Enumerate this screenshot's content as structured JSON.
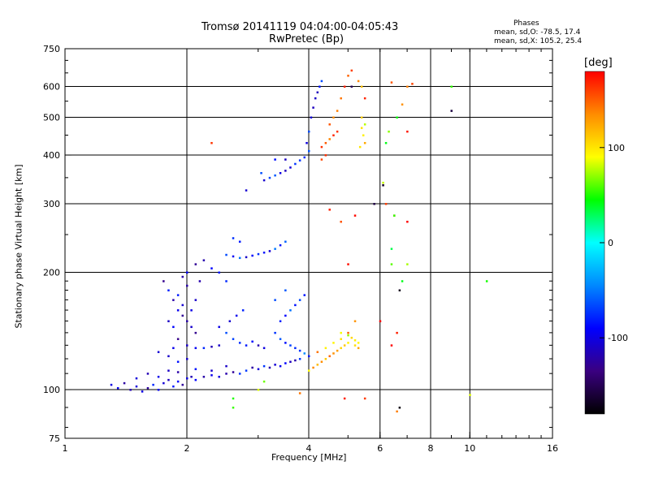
{
  "header": {
    "title_line1": "Tromsø 20141119 04:04:00-04:05:43",
    "title_line2": "RwPretec (Bp)"
  },
  "stats": {
    "heading": "Phases",
    "line_o": "mean, sd,O: -78.5, 17.4",
    "line_x": "mean, sd,X: 105.2, 25.4"
  },
  "chart_data": {
    "type": "scatter",
    "xlabel": "Frequency [MHz]",
    "ylabel": "Stationary phase Virtual Height [km]",
    "x_scale": "log",
    "y_scale": "log",
    "xlim": [
      1,
      16
    ],
    "ylim": [
      75,
      750
    ],
    "x_ticks": [
      {
        "value": 1,
        "label": "1"
      },
      {
        "value": 2,
        "label": "2"
      },
      {
        "value": 4,
        "label": "4"
      },
      {
        "value": 6,
        "label": "6"
      },
      {
        "value": 8,
        "label": "8"
      },
      {
        "value": 10,
        "label": "10"
      },
      {
        "value": 16,
        "label": "16"
      }
    ],
    "y_ticks": [
      {
        "value": 75,
        "label": "75"
      },
      {
        "value": 100,
        "label": "100"
      },
      {
        "value": 200,
        "label": "200"
      },
      {
        "value": 300,
        "label": "300"
      },
      {
        "value": 400,
        "label": "400"
      },
      {
        "value": 500,
        "label": "500"
      },
      {
        "value": 600,
        "label": "600"
      },
      {
        "value": 750,
        "label": "750"
      }
    ],
    "grid_x": [
      2,
      4,
      6,
      8,
      10
    ],
    "grid_y": [
      100,
      200,
      300,
      400,
      500,
      600
    ],
    "colorbar": {
      "label": "[deg]",
      "range": [
        -180,
        180
      ],
      "ticks": [
        {
          "value": 100,
          "label": "100"
        },
        {
          "value": 0,
          "label": "0"
        },
        {
          "value": -100,
          "label": "-100"
        }
      ],
      "stops": [
        "#ff0000",
        "#ff8c00",
        "#ffff00",
        "#00ff00",
        "#00ffff",
        "#0088ff",
        "#0000ff",
        "#3a0080",
        "#000000"
      ]
    },
    "series_description_note": "",
    "clusters": [
      {
        "name": "",
        "points": [
          [
            1.3,
            103
          ],
          [
            1.35,
            101
          ],
          [
            1.4,
            104
          ],
          [
            1.45,
            100
          ],
          [
            1.5,
            102
          ],
          [
            1.55,
            99
          ],
          [
            1.6,
            101
          ],
          [
            1.65,
            103
          ],
          [
            1.7,
            100
          ],
          [
            1.75,
            104
          ],
          [
            1.8,
            106
          ],
          [
            1.85,
            102
          ],
          [
            1.9,
            105
          ],
          [
            1.95,
            103
          ],
          [
            2.0,
            107
          ],
          [
            2.05,
            108
          ],
          [
            2.1,
            106
          ],
          [
            2.2,
            108
          ],
          [
            2.3,
            109
          ],
          [
            2.4,
            108
          ],
          [
            2.5,
            110
          ],
          [
            2.6,
            111
          ],
          [
            2.7,
            110
          ],
          [
            2.8,
            112
          ],
          [
            2.9,
            114
          ],
          [
            3.0,
            113
          ],
          [
            3.1,
            115
          ],
          [
            3.2,
            114
          ],
          [
            3.3,
            116
          ],
          [
            3.4,
            115
          ],
          [
            3.5,
            117
          ],
          [
            3.6,
            118
          ],
          [
            3.7,
            119
          ],
          [
            3.8,
            120
          ],
          [
            1.5,
            107
          ],
          [
            1.6,
            110
          ],
          [
            1.7,
            108
          ],
          [
            1.8,
            112
          ],
          [
            1.9,
            111
          ],
          [
            2.1,
            113
          ],
          [
            2.3,
            112
          ],
          [
            2.5,
            115
          ]
        ],
        "phase": -100
      },
      {
        "name": "",
        "points": [
          [
            1.75,
            190
          ],
          [
            1.8,
            180
          ],
          [
            1.85,
            170
          ],
          [
            1.9,
            175
          ],
          [
            1.95,
            165
          ],
          [
            2.0,
            185
          ],
          [
            2.05,
            160
          ],
          [
            1.8,
            150
          ],
          [
            1.85,
            145
          ],
          [
            1.9,
            160
          ],
          [
            1.95,
            155
          ],
          [
            2.0,
            150
          ],
          [
            2.05,
            145
          ],
          [
            2.1,
            140
          ],
          [
            1.9,
            135
          ],
          [
            2.0,
            130
          ],
          [
            2.1,
            128
          ],
          [
            1.85,
            128
          ],
          [
            2.2,
            128
          ],
          [
            2.3,
            129
          ],
          [
            2.4,
            130
          ],
          [
            1.7,
            125
          ],
          [
            1.8,
            122
          ],
          [
            1.9,
            118
          ],
          [
            2.0,
            120
          ],
          [
            2.1,
            170
          ],
          [
            2.15,
            190
          ],
          [
            1.95,
            195
          ],
          [
            2.0,
            200
          ],
          [
            2.1,
            210
          ],
          [
            2.2,
            215
          ],
          [
            2.3,
            205
          ],
          [
            2.4,
            200
          ],
          [
            2.5,
            190
          ]
        ],
        "phase": -105
      },
      {
        "name": "",
        "points": [
          [
            2.5,
            140
          ],
          [
            2.6,
            135
          ],
          [
            2.7,
            132
          ],
          [
            2.8,
            130
          ],
          [
            2.9,
            133
          ],
          [
            3.0,
            130
          ],
          [
            3.1,
            128
          ],
          [
            2.4,
            145
          ],
          [
            2.55,
            150
          ],
          [
            2.65,
            155
          ],
          [
            2.75,
            160
          ]
        ],
        "phase": -90
      },
      {
        "name": "",
        "points": [
          [
            2.5,
            222
          ],
          [
            2.6,
            220
          ],
          [
            2.7,
            218
          ],
          [
            2.8,
            219
          ],
          [
            2.9,
            221
          ],
          [
            3.0,
            223
          ],
          [
            3.1,
            225
          ],
          [
            3.2,
            227
          ],
          [
            3.3,
            230
          ],
          [
            3.4,
            235
          ],
          [
            3.5,
            240
          ],
          [
            2.6,
            245
          ],
          [
            2.7,
            240
          ]
        ],
        "phase": -80
      },
      {
        "name": "",
        "points": [
          [
            3.1,
            345
          ],
          [
            3.2,
            350
          ],
          [
            3.3,
            355
          ],
          [
            3.4,
            360
          ],
          [
            3.5,
            365
          ],
          [
            3.6,
            372
          ],
          [
            3.7,
            380
          ],
          [
            3.8,
            388
          ],
          [
            3.9,
            395
          ],
          [
            4.0,
            410
          ],
          [
            3.95,
            430
          ],
          [
            4.0,
            460
          ],
          [
            4.05,
            500
          ],
          [
            4.1,
            530
          ],
          [
            4.15,
            560
          ],
          [
            4.2,
            580
          ],
          [
            4.25,
            600
          ],
          [
            4.3,
            620
          ],
          [
            3.05,
            360
          ],
          [
            2.8,
            325
          ],
          [
            3.3,
            390
          ],
          [
            3.5,
            390
          ]
        ],
        "phase": -85
      },
      {
        "name": "",
        "points": [
          [
            3.3,
            140
          ],
          [
            3.4,
            135
          ],
          [
            3.5,
            132
          ],
          [
            3.6,
            130
          ],
          [
            3.7,
            128
          ],
          [
            3.8,
            126
          ],
          [
            3.9,
            124
          ],
          [
            4.0,
            122
          ],
          [
            3.4,
            150
          ],
          [
            3.5,
            155
          ],
          [
            3.6,
            160
          ],
          [
            3.7,
            165
          ],
          [
            3.8,
            170
          ],
          [
            3.9,
            175
          ],
          [
            3.5,
            180
          ],
          [
            3.3,
            170
          ]
        ],
        "phase": -60
      },
      {
        "name": "",
        "points": [
          [
            4.0,
            112
          ],
          [
            4.1,
            114
          ],
          [
            4.2,
            116
          ],
          [
            4.3,
            118
          ],
          [
            4.4,
            120
          ],
          [
            4.5,
            122
          ],
          [
            4.6,
            124
          ],
          [
            4.7,
            126
          ],
          [
            4.8,
            128
          ],
          [
            4.9,
            130
          ],
          [
            5.0,
            132
          ],
          [
            4.2,
            125
          ],
          [
            4.4,
            128
          ],
          [
            4.6,
            132
          ],
          [
            4.8,
            135
          ]
        ],
        "phase": 120
      },
      {
        "name": "",
        "points": [
          [
            4.8,
            140
          ],
          [
            5.0,
            138
          ],
          [
            5.1,
            136
          ],
          [
            5.2,
            134
          ],
          [
            5.3,
            132
          ],
          [
            5.2,
            130
          ],
          [
            5.3,
            128
          ],
          [
            5.4,
            470
          ],
          [
            5.45,
            450
          ],
          [
            5.5,
            480
          ],
          [
            5.5,
            430
          ],
          [
            5.4,
            500
          ],
          [
            5.35,
            420
          ]
        ],
        "phase": 100
      },
      {
        "name": "",
        "points": [
          [
            4.3,
            420
          ],
          [
            4.4,
            430
          ],
          [
            4.5,
            440
          ],
          [
            4.6,
            450
          ],
          [
            4.7,
            460
          ],
          [
            4.6,
            500
          ],
          [
            4.7,
            520
          ],
          [
            4.5,
            480
          ],
          [
            4.3,
            390
          ],
          [
            4.4,
            400
          ],
          [
            4.8,
            560
          ],
          [
            4.9,
            600
          ],
          [
            5.0,
            640
          ],
          [
            5.1,
            660
          ],
          [
            5.3,
            620
          ],
          [
            5.4,
            600
          ],
          [
            5.5,
            560
          ]
        ],
        "phase": 140
      },
      {
        "name": "",
        "points": [
          [
            2.3,
            430
          ],
          [
            4.5,
            290
          ],
          [
            4.8,
            270
          ],
          [
            5.0,
            210
          ],
          [
            5.2,
            280
          ],
          [
            6.2,
            300
          ],
          [
            6.5,
            280
          ],
          [
            7.0,
            270
          ],
          [
            7.0,
            460
          ],
          [
            6.8,
            540
          ],
          [
            6.4,
            615
          ],
          [
            7.2,
            610
          ],
          [
            6.4,
            130
          ],
          [
            6.6,
            140
          ],
          [
            7.0,
            600
          ],
          [
            4.9,
            95
          ],
          [
            6.6,
            88
          ],
          [
            3.8,
            98
          ],
          [
            5.5,
            95
          ],
          [
            5.0,
            140
          ],
          [
            5.2,
            150
          ],
          [
            6.0,
            150
          ]
        ],
        "phase": 160
      },
      {
        "name": "",
        "points": [
          [
            6.4,
            210
          ],
          [
            6.4,
            230
          ],
          [
            6.5,
            280
          ],
          [
            6.2,
            430
          ],
          [
            6.3,
            460
          ],
          [
            6.6,
            500
          ],
          [
            7.0,
            210
          ],
          [
            11.0,
            190
          ],
          [
            10.0,
            97
          ],
          [
            9.0,
            520
          ],
          [
            9.0,
            600
          ],
          [
            6.1,
            340
          ],
          [
            6.8,
            190
          ],
          [
            2.6,
            95
          ],
          [
            2.6,
            90
          ],
          [
            3.0,
            100
          ],
          [
            3.1,
            105
          ]
        ],
        "phase": 60
      },
      {
        "name": "",
        "points": [
          [
            6.7,
            90
          ],
          [
            6.7,
            180
          ],
          [
            9.0,
            520
          ],
          [
            6.1,
            335
          ],
          [
            5.8,
            300
          ],
          [
            5.1,
            600
          ]
        ],
        "phase": -150
      }
    ]
  }
}
